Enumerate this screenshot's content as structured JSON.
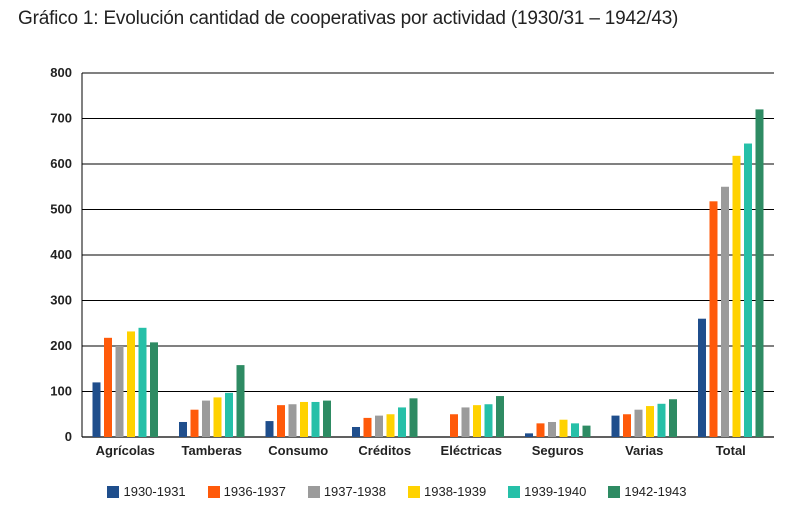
{
  "chart_data": {
    "type": "bar",
    "title": "Gráfico 1: Evolución cantidad de cooperativas por actividad  (1930/31 – 1942/43)",
    "xlabel": "",
    "ylabel": "",
    "ylim": [
      0,
      800
    ],
    "yticks": [
      0,
      100,
      200,
      300,
      400,
      500,
      600,
      700,
      800
    ],
    "grid": true,
    "legend_position": "bottom",
    "categories": [
      "Agrícolas",
      "Tamberas",
      "Consumo",
      "Créditos",
      "Eléctricas",
      "Seguros",
      "Varias",
      "Total"
    ],
    "series": [
      {
        "name": "1930-1931",
        "color": "#1f4e8c",
        "values": [
          120,
          33,
          35,
          22,
          0,
          8,
          47,
          260
        ]
      },
      {
        "name": "1936-1937",
        "color": "#ff5a0a",
        "values": [
          218,
          60,
          70,
          42,
          50,
          30,
          50,
          518
        ]
      },
      {
        "name": "1937-1938",
        "color": "#9b9b9b",
        "values": [
          200,
          80,
          72,
          47,
          65,
          33,
          60,
          550
        ]
      },
      {
        "name": "1938-1939",
        "color": "#ffd200",
        "values": [
          232,
          87,
          77,
          50,
          70,
          38,
          68,
          618
        ]
      },
      {
        "name": "1939-1940",
        "color": "#26c0a8",
        "values": [
          240,
          97,
          77,
          65,
          72,
          30,
          73,
          645
        ]
      },
      {
        "name": "1942-1943",
        "color": "#2e8b63",
        "values": [
          208,
          158,
          80,
          85,
          90,
          25,
          83,
          720
        ]
      }
    ]
  }
}
